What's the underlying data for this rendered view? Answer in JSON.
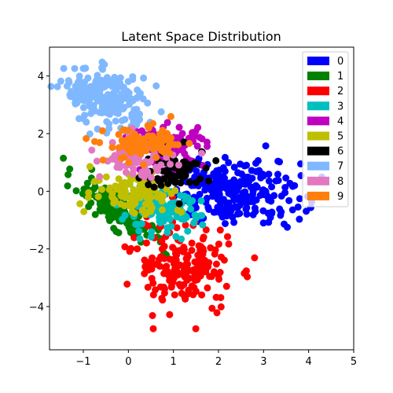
{
  "chart_data": {
    "type": "scatter",
    "title": "Latent Space Distribution",
    "xlabel": "",
    "ylabel": "",
    "xlim": [
      -1.75,
      5.0
    ],
    "ylim": [
      -5.5,
      5.0
    ],
    "x_ticks": [
      -1,
      0,
      1,
      2,
      3,
      4,
      5
    ],
    "y_ticks": [
      -4,
      -2,
      0,
      2,
      4
    ],
    "x_tick_labels": [
      "−1",
      "0",
      "1",
      "2",
      "3",
      "4",
      "5"
    ],
    "y_tick_labels": [
      "−4",
      "−2",
      "0",
      "2",
      "4"
    ],
    "grid": false,
    "legend_position": "top-right",
    "series": [
      {
        "name": "0",
        "color": "#0000ff"
      },
      {
        "name": "1",
        "color": "#008000"
      },
      {
        "name": "2",
        "color": "#ff0000"
      },
      {
        "name": "3",
        "color": "#00bfbf"
      },
      {
        "name": "4",
        "color": "#bf00bf"
      },
      {
        "name": "5",
        "color": "#bfbf00"
      },
      {
        "name": "6",
        "color": "#000000"
      },
      {
        "name": "7",
        "color": "#7fb8ff"
      },
      {
        "name": "8",
        "color": "#e377c2"
      },
      {
        "name": "9",
        "color": "#ff7f0e"
      }
    ],
    "cluster_regions": [
      {
        "series": "0",
        "cx": 2.3,
        "cy": 0.0,
        "sx": 0.75,
        "sy": 0.55,
        "rho": -0.1,
        "n": 260
      },
      {
        "series": "1",
        "cx": -0.3,
        "cy": -0.6,
        "sx": 0.42,
        "sy": 0.55,
        "rho": -0.85,
        "n": 150
      },
      {
        "series": "2",
        "cx": 1.2,
        "cy": -2.6,
        "sx": 0.55,
        "sy": 0.8,
        "rho": -0.2,
        "n": 190
      },
      {
        "series": "3",
        "cx": 0.7,
        "cy": -0.75,
        "sx": 0.45,
        "sy": 0.35,
        "rho": 0.0,
        "n": 110
      },
      {
        "series": "4",
        "cx": 0.9,
        "cy": 1.6,
        "sx": 0.4,
        "sy": 0.35,
        "rho": 0.0,
        "n": 100
      },
      {
        "series": "5",
        "cx": 0.2,
        "cy": 0.0,
        "sx": 0.5,
        "sy": 0.4,
        "rho": 0.0,
        "n": 110
      },
      {
        "series": "6",
        "cx": 1.1,
        "cy": 0.75,
        "sx": 0.4,
        "sy": 0.35,
        "rho": 0.0,
        "n": 70
      },
      {
        "series": "7",
        "cx": -0.5,
        "cy": 3.2,
        "sx": 0.45,
        "sy": 0.5,
        "rho": -0.3,
        "n": 220
      },
      {
        "series": "8",
        "cx": 0.2,
        "cy": 1.2,
        "sx": 0.4,
        "sy": 0.35,
        "rho": 0.0,
        "n": 90
      },
      {
        "series": "9",
        "cx": 0.4,
        "cy": 1.6,
        "sx": 0.45,
        "sy": 0.3,
        "rho": 0.0,
        "n": 90
      }
    ]
  }
}
